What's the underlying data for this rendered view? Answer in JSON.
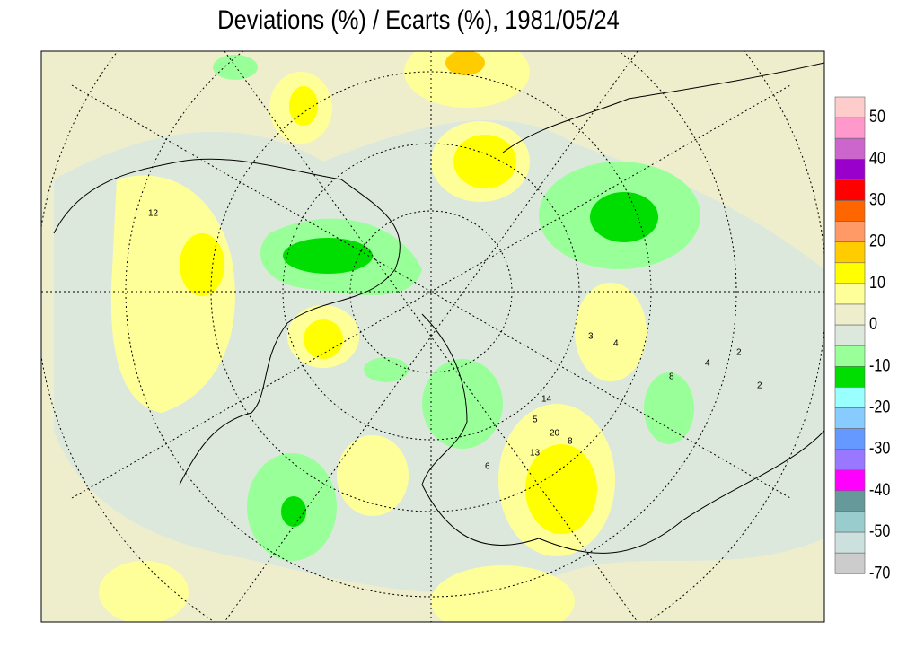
{
  "title": "Deviations (%) / Ecarts (%), 1981/05/24",
  "legend": {
    "colors": [
      "#ffcccc",
      "#ff99cc",
      "#cc66cc",
      "#9900cc",
      "#ff0000",
      "#ff6600",
      "#ff9966",
      "#ffcc00",
      "#ffff00",
      "#ffff99",
      "#eeeecc",
      "#dde8dd",
      "#99ff99",
      "#00dd00",
      "#99ffff",
      "#88ccff",
      "#6699ff",
      "#9977ff",
      "#ff00ff",
      "#669999",
      "#99cccc",
      "#cce0dd",
      "#cccccc"
    ],
    "labels": [
      "50",
      "40",
      "30",
      "20",
      "10",
      "0",
      "-10",
      "-20",
      "-30",
      "-40",
      "-50",
      "-70"
    ]
  },
  "map": {
    "contour_labels": [
      "12",
      "3",
      "4",
      "4",
      "8",
      "2",
      "2",
      "14",
      "5",
      "20",
      "13",
      "8",
      "6"
    ]
  }
}
